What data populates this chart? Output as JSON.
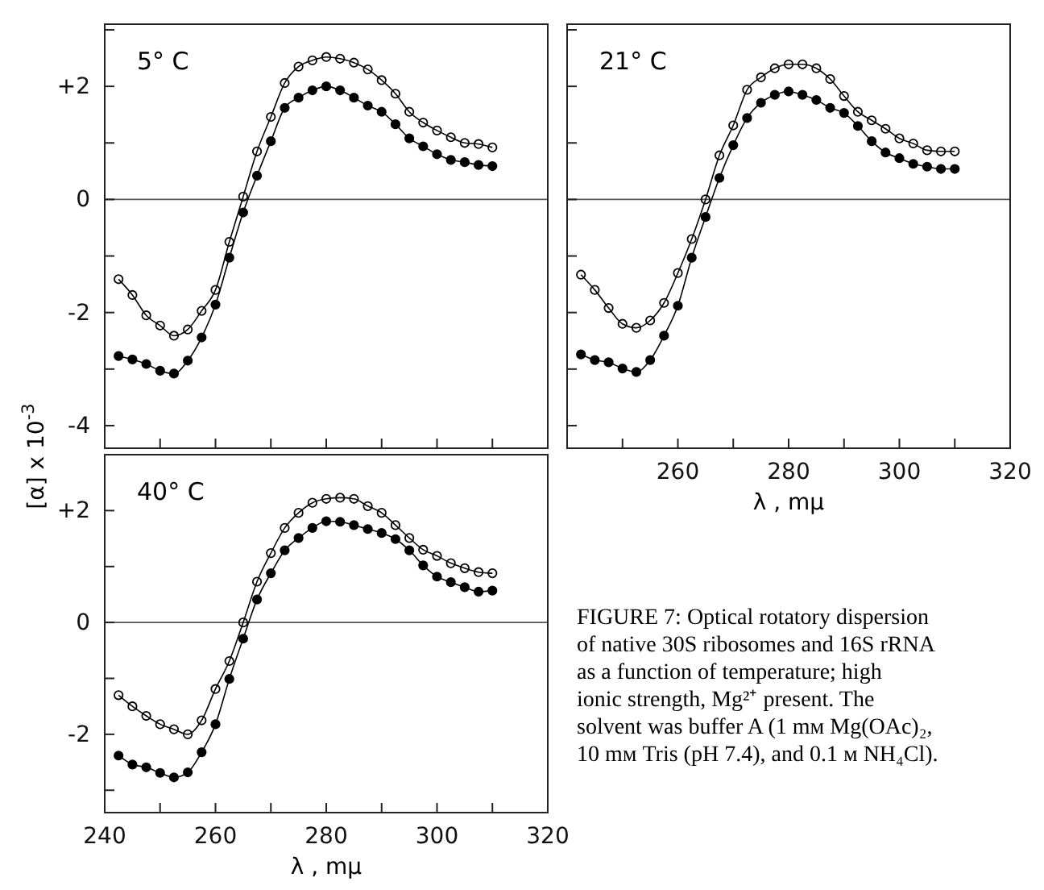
{
  "chart_data": [
    {
      "type": "line",
      "title": "5° C",
      "ylabel": "[α] x 10$^{-3}$",
      "x": [
        242.5,
        245,
        247.5,
        250,
        252.5,
        255,
        257.5,
        260,
        262.5,
        265,
        267.5,
        270,
        272.5,
        275,
        277.5,
        280,
        282.5,
        285,
        287.5,
        290,
        292.5,
        295,
        297.5,
        300,
        302.5,
        305,
        307.5,
        310
      ],
      "xlim": [
        240,
        320
      ],
      "xticks": [
        240,
        250,
        260,
        270,
        280,
        290,
        300,
        310,
        320
      ],
      "ylim": [
        -4.4,
        3.1
      ],
      "yticks": [
        {
          "value": 3,
          "label": null
        },
        {
          "value": 2,
          "label": "+2"
        },
        {
          "value": 1,
          "label": null
        },
        {
          "value": 0,
          "label": "0"
        },
        {
          "value": -1,
          "label": null
        },
        {
          "value": -2,
          "label": "-2"
        },
        {
          "value": -3,
          "label": null
        },
        {
          "value": -4,
          "label": "-4"
        }
      ],
      "tick_labels": "y",
      "marker": "circle",
      "line_style": "solid",
      "ref_lines": [
        {
          "axis": "y",
          "value": 0
        }
      ],
      "series": [
        {
          "color": "#000000",
          "values": [
            -1.41,
            -1.69,
            -2.05,
            -2.23,
            -2.41,
            -2.3,
            -1.97,
            -1.6,
            -0.75,
            0.05,
            0.85,
            1.46,
            2.06,
            2.35,
            2.46,
            2.52,
            2.49,
            2.42,
            2.3,
            2.11,
            1.87,
            1.55,
            1.36,
            1.22,
            1.1,
            1.0,
            0.98,
            0.92
          ]
        },
        {
          "color": "#000000",
          "values": [
            -2.77,
            -2.83,
            -2.91,
            -3.03,
            -3.08,
            -2.85,
            -2.44,
            -1.86,
            -1.03,
            -0.23,
            0.42,
            1.03,
            1.62,
            1.8,
            1.93,
            2.0,
            1.93,
            1.8,
            1.66,
            1.55,
            1.33,
            1.08,
            0.94,
            0.8,
            0.7,
            0.66,
            0.61,
            0.59
          ]
        }
      ]
    },
    {
      "type": "line",
      "title": "21° C",
      "xlabel": "λ , mμ",
      "x": [
        242.5,
        245,
        247.5,
        250,
        252.5,
        255,
        257.5,
        260,
        262.5,
        265,
        267.5,
        270,
        272.5,
        275,
        277.5,
        280,
        282.5,
        285,
        287.5,
        290,
        292.5,
        295,
        297.5,
        300,
        302.5,
        305,
        307.5,
        310
      ],
      "xlim": [
        240,
        320
      ],
      "xticks": [
        {
          "value": 250,
          "label": null
        },
        {
          "value": 260,
          "label": "260"
        },
        {
          "value": 270,
          "label": null
        },
        {
          "value": 280,
          "label": "280"
        },
        {
          "value": 290,
          "label": null
        },
        {
          "value": 300,
          "label": "300"
        },
        {
          "value": 310,
          "label": null
        },
        {
          "value": 320,
          "label": "320"
        }
      ],
      "ylim": [
        -4.4,
        3.1
      ],
      "yticks": [
        3,
        2,
        1,
        0,
        -1,
        -2,
        -3,
        -4
      ],
      "tick_labels": "x",
      "marker": "circle",
      "line_style": "solid",
      "ref_lines": [
        {
          "axis": "y",
          "value": 0
        }
      ],
      "series": [
        {
          "color": "#000000",
          "values": [
            -1.33,
            -1.6,
            -1.92,
            -2.2,
            -2.27,
            -2.14,
            -1.83,
            -1.3,
            -0.7,
            0,
            0.78,
            1.31,
            1.94,
            2.16,
            2.32,
            2.39,
            2.39,
            2.32,
            2.13,
            1.83,
            1.55,
            1.4,
            1.25,
            1.08,
            0.99,
            0.87,
            0.85,
            0.85
          ]
        },
        {
          "color": "#000000",
          "values": [
            -2.74,
            -2.84,
            -2.88,
            -2.99,
            -3.05,
            -2.84,
            -2.41,
            -1.88,
            -1.03,
            -0.31,
            0.38,
            0.96,
            1.44,
            1.71,
            1.85,
            1.91,
            1.85,
            1.76,
            1.62,
            1.53,
            1.3,
            1.03,
            0.83,
            0.73,
            0.63,
            0.58,
            0.54,
            0.54
          ]
        }
      ]
    },
    {
      "type": "line",
      "title": "40° C",
      "xlabel": "λ , mμ",
      "x": [
        242.5,
        245,
        247.5,
        250,
        252.5,
        255,
        257.5,
        260,
        262.5,
        265,
        267.5,
        270,
        272.5,
        275,
        277.5,
        280,
        282.5,
        285,
        287.5,
        290,
        292.5,
        295,
        297.5,
        300,
        302.5,
        305,
        307.5,
        310
      ],
      "xlim": [
        240,
        320
      ],
      "xticks": [
        240,
        {
          "value": 250,
          "label": null
        },
        260,
        {
          "value": 270,
          "label": null
        },
        280,
        {
          "value": 290,
          "label": null
        },
        300,
        {
          "value": 310,
          "label": null
        },
        320
      ],
      "ylim": [
        -3.4,
        3.0
      ],
      "yticks": [
        {
          "value": 2,
          "label": "+2"
        },
        {
          "value": 1,
          "label": null
        },
        {
          "value": 0,
          "label": "0"
        },
        {
          "value": -1,
          "label": null
        },
        {
          "value": -2,
          "label": "-2"
        },
        {
          "value": -3,
          "label": null
        }
      ],
      "marker": "circle",
      "line_style": "solid",
      "ref_lines": [
        {
          "axis": "y",
          "value": 0
        }
      ],
      "annotations": [
        "FIGURE 7: Optical rotatory dispersion of native 30S ribosomes and 16S rRNA as a function of temperature; high ionic strength, Mg²⁺ present. The solvent was buffer A (1 mм Mg(OAc)₂, 10 mм Tris (pH 7.4), and 0.1 м NH₄Cl)."
      ],
      "series": [
        {
          "color": "#000000",
          "values": [
            -1.3,
            -1.5,
            -1.67,
            -1.82,
            -1.91,
            -2.0,
            -1.75,
            -1.19,
            -0.69,
            0,
            0.73,
            1.24,
            1.69,
            1.96,
            2.14,
            2.21,
            2.23,
            2.21,
            2.08,
            1.96,
            1.74,
            1.51,
            1.3,
            1.19,
            1.06,
            0.97,
            0.9,
            0.88
          ]
        },
        {
          "color": "#000000",
          "values": [
            -2.38,
            -2.54,
            -2.59,
            -2.69,
            -2.77,
            -2.68,
            -2.32,
            -1.82,
            -1.01,
            -0.29,
            0.41,
            0.88,
            1.29,
            1.51,
            1.69,
            1.81,
            1.8,
            1.74,
            1.67,
            1.6,
            1.49,
            1.29,
            1.02,
            0.82,
            0.72,
            0.63,
            0.55,
            0.57
          ]
        }
      ]
    }
  ]
}
